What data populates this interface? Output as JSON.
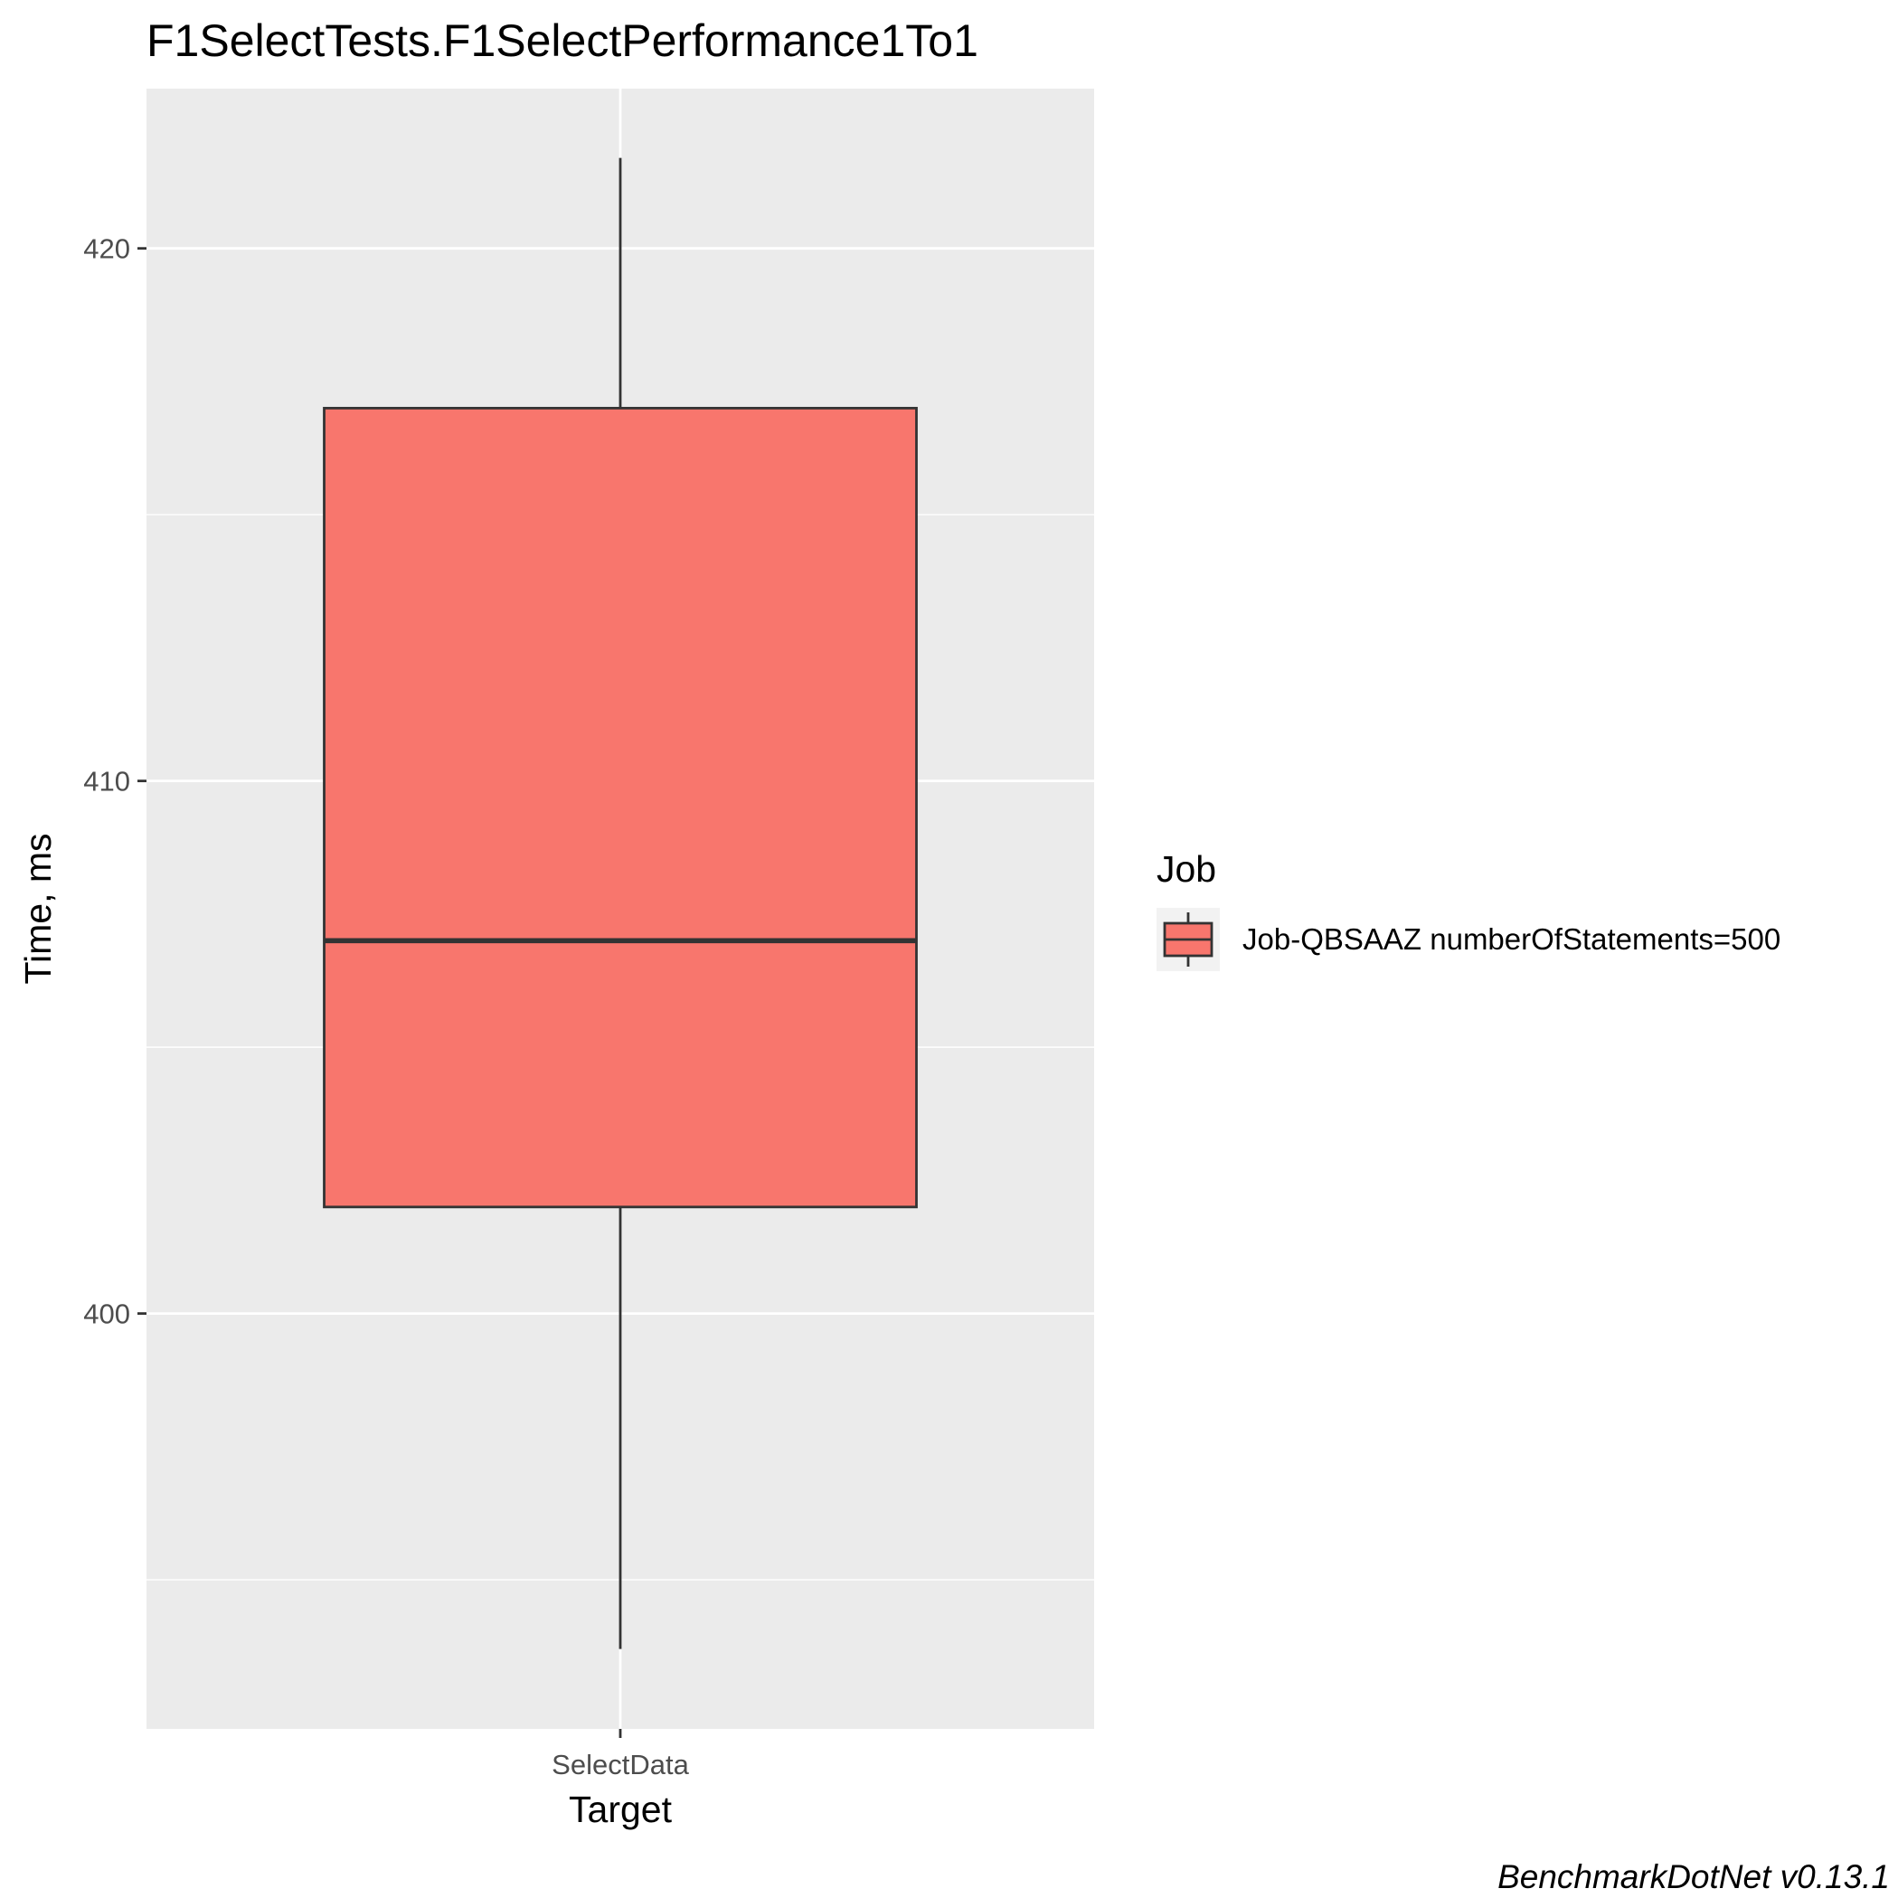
{
  "chart_data": {
    "type": "boxplot",
    "title": "F1SelectTests.F1SelectPerformance1To1",
    "xlabel": "Target",
    "ylabel": "Time, ms",
    "ylim": [
      392.2,
      423.0
    ],
    "yticks": [
      400,
      410,
      420
    ],
    "categories": [
      "SelectData"
    ],
    "series": [
      {
        "name": "Job-QBSAAZ numberOfStatements=500",
        "color": "#F8766D",
        "boxes": [
          {
            "category": "SelectData",
            "min": 393.7,
            "q1": 402.0,
            "median": 407.0,
            "q3": 417.0,
            "max": 421.7
          }
        ]
      }
    ],
    "legend": {
      "title": "Job",
      "position": "right"
    },
    "grid": true,
    "caption": "BenchmarkDotNet v0.13.1"
  }
}
